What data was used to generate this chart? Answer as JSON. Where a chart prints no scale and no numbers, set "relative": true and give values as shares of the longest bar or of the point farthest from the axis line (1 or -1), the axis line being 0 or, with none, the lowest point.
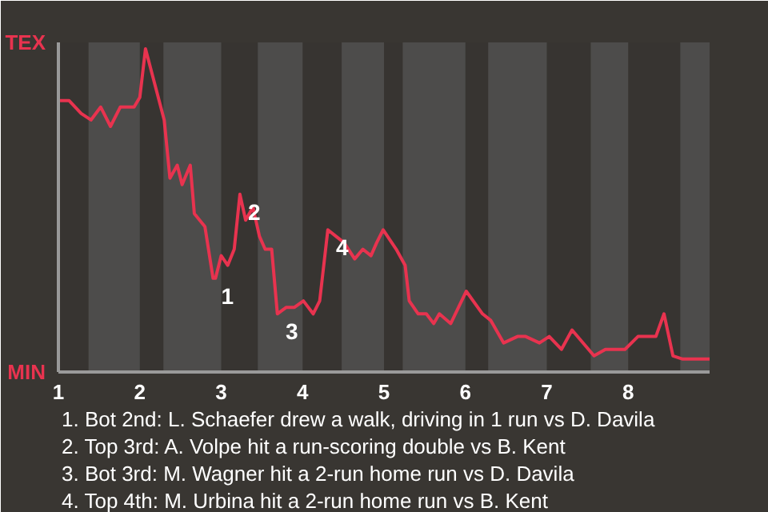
{
  "chart_data": {
    "type": "line",
    "relative": true,
    "x": [
      1.02,
      1.13,
      1.28,
      1.4,
      1.52,
      1.64,
      1.76,
      1.93,
      2.0,
      2.07,
      2.3,
      2.37,
      2.46,
      2.52,
      2.62,
      2.67,
      2.8,
      2.9,
      2.93,
      3.0,
      3.08,
      3.16,
      3.23,
      3.3,
      3.39,
      3.47,
      3.54,
      3.62,
      3.69,
      3.8,
      3.9,
      4.01,
      4.13,
      4.21,
      4.31,
      4.41,
      4.51,
      4.64,
      4.74,
      4.84,
      4.91,
      4.99,
      5.15,
      5.26,
      5.31,
      5.42,
      5.52,
      5.61,
      5.68,
      5.82,
      6.01,
      6.21,
      6.31,
      6.47,
      6.64,
      6.74,
      6.91,
      7.03,
      7.18,
      7.31,
      7.58,
      7.72,
      7.96,
      8.12,
      8.34,
      8.44,
      8.55,
      8.67,
      9.0
    ],
    "series": [
      {
        "color": "#e8334f",
        "values": [
          0.84,
          0.84,
          0.8,
          0.78,
          0.82,
          0.76,
          0.82,
          0.82,
          0.85,
          1.0,
          0.78,
          0.6,
          0.64,
          0.58,
          0.64,
          0.49,
          0.45,
          0.29,
          0.29,
          0.36,
          0.33,
          0.38,
          0.55,
          0.47,
          0.51,
          0.42,
          0.38,
          0.38,
          0.18,
          0.2,
          0.2,
          0.22,
          0.18,
          0.22,
          0.44,
          0.42,
          0.4,
          0.35,
          0.38,
          0.36,
          0.4,
          0.44,
          0.38,
          0.33,
          0.22,
          0.18,
          0.18,
          0.15,
          0.18,
          0.15,
          0.25,
          0.18,
          0.16,
          0.09,
          0.11,
          0.11,
          0.09,
          0.11,
          0.07,
          0.13,
          0.05,
          0.07,
          0.07,
          0.11,
          0.11,
          0.18,
          0.05,
          0.04,
          0.04
        ]
      }
    ],
    "xlim": [
      1,
      9
    ],
    "xticks": [
      1,
      2,
      3,
      4,
      5,
      6,
      7,
      8
    ],
    "marker": "none",
    "line_style": "solid",
    "bands": [
      {
        "axis": "x",
        "from": 1.37,
        "to": 2,
        "color": "#4d4c4b"
      },
      {
        "axis": "x",
        "from": 2.29,
        "to": 3,
        "color": "#4d4c4b"
      },
      {
        "axis": "x",
        "from": 3.45,
        "to": 4,
        "color": "#4d4c4b"
      },
      {
        "axis": "x",
        "from": 4.48,
        "to": 5,
        "color": "#4d4c4b"
      },
      {
        "axis": "x",
        "from": 5.23,
        "to": 6,
        "color": "#4d4c4b"
      },
      {
        "axis": "x",
        "from": 6.28,
        "to": 7,
        "color": "#4d4c4b"
      },
      {
        "axis": "x",
        "from": 7.54,
        "to": 8,
        "color": "#4d4c4b"
      },
      {
        "axis": "x",
        "from": 8.64,
        "to": 9,
        "color": "#4d4c4b"
      }
    ],
    "annotations": [
      "TEX",
      "MIN",
      {
        "text": "1",
        "x": 2.9,
        "y": 0.29
      },
      {
        "text": "2",
        "x": 3.23,
        "y": 0.55
      },
      {
        "text": "3",
        "x": 3.69,
        "y": 0.18
      },
      {
        "text": "4",
        "x": 4.31,
        "y": 0.44
      },
      "1. Bot 2nd: L. Schaefer drew a walk, driving in 1 run vs D. Davila",
      "2. Top 3rd: A. Volpe hit a run-scoring double vs B. Kent",
      "3. Bot 3rd: M. Wagner hit a 2-run home run vs D. Davila",
      "4. Top 4th: M. Urbina hit a 2-run home run vs B. Kent"
    ]
  }
}
